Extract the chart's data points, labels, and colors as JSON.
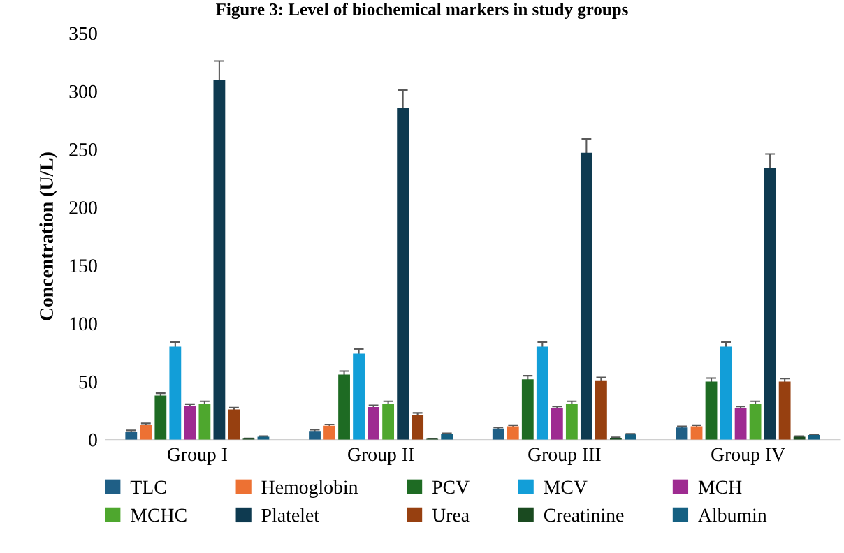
{
  "chart_data": {
    "type": "bar",
    "title": "Figure 3: Level of biochemical markers in study groups",
    "ylabel": "Concentration (U/L)",
    "categories": [
      "Group I",
      "Group II",
      "Group III",
      "Group IV"
    ],
    "ylim": [
      0,
      350
    ],
    "yticks": [
      0,
      50,
      100,
      150,
      200,
      250,
      300,
      350
    ],
    "grid": false,
    "legend": "bottom",
    "series": [
      {
        "name": "TLC",
        "color": "#1f5f86",
        "values": [
          7,
          7.5,
          9.5,
          10.5
        ],
        "errors": [
          1,
          1,
          1,
          1
        ]
      },
      {
        "name": "Hemoglobin",
        "color": "#ed7133",
        "values": [
          13,
          12,
          11.5,
          11.5
        ],
        "errors": [
          1,
          1,
          1,
          1
        ]
      },
      {
        "name": "PCV",
        "color": "#1e6b23",
        "values": [
          38,
          56,
          52,
          50
        ],
        "errors": [
          2,
          3,
          3,
          3
        ]
      },
      {
        "name": "MCV",
        "color": "#129ed8",
        "values": [
          80,
          74,
          80,
          80
        ],
        "errors": [
          4,
          4,
          4,
          4
        ]
      },
      {
        "name": "MCH",
        "color": "#9e2b91",
        "values": [
          29,
          28,
          27,
          27
        ],
        "errors": [
          1.5,
          1.5,
          1.5,
          1.5
        ]
      },
      {
        "name": "MCHC",
        "color": "#4ea72e",
        "values": [
          31,
          31,
          31,
          31
        ],
        "errors": [
          2,
          2,
          2,
          2
        ]
      },
      {
        "name": "Platelet",
        "color": "#0e3a50",
        "values": [
          310,
          286,
          247,
          234
        ],
        "errors": [
          16,
          15,
          12,
          12
        ]
      },
      {
        "name": "Urea",
        "color": "#974010",
        "values": [
          26,
          21.5,
          51,
          50
        ],
        "errors": [
          1.5,
          1.5,
          2.5,
          2.5
        ]
      },
      {
        "name": "Creatinine",
        "color": "#1a4a20",
        "values": [
          0.8,
          0.7,
          1.5,
          2.5
        ],
        "errors": [
          0.3,
          0.3,
          0.5,
          0.5
        ]
      },
      {
        "name": "Albumin",
        "color": "#156082",
        "values": [
          2.5,
          5,
          4.5,
          4
        ],
        "errors": [
          0.5,
          0.5,
          0.5,
          0.5
        ]
      }
    ]
  }
}
